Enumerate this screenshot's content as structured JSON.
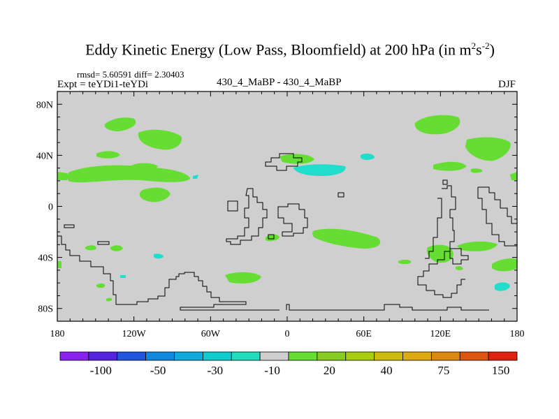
{
  "header": {
    "title_main": "Eddy Kinetic Energy (Low Pass, Bloomfield) at 200 hPa (in m",
    "title_sup1": "2",
    "title_mid": "s",
    "title_sup2": "-2",
    "title_end": ")",
    "stats": "rmsd= 5.60591 diff= 2.30403",
    "expt": "Expt = teYDi1-teYDi",
    "case": "430_4_MaBP - 430_4_MaBP",
    "season": "DJF"
  },
  "map": {
    "lat_labels": [
      "80N",
      "40N",
      "0",
      "40S",
      "80S"
    ],
    "lon_labels": [
      "180",
      "120W",
      "60W",
      "0",
      "60E",
      "120E",
      "180"
    ],
    "background_color": "#cfcfcf",
    "positive_color": "#66dd33",
    "negative_color": "#22ddcc"
  },
  "colorbar": {
    "colors": [
      "#8822ee",
      "#5522dd",
      "#2255dd",
      "#1188dd",
      "#11aadd",
      "#11cccc",
      "#22ddbb",
      "#cfcfcf",
      "#66dd33",
      "#88cc22",
      "#aacc11",
      "#ccbb11",
      "#ddaa11",
      "#dd8811",
      "#dd5511",
      "#dd2211"
    ],
    "labels": [
      "-100",
      "-50",
      "-30",
      "-10",
      "20",
      "40",
      "75",
      "150"
    ]
  }
}
